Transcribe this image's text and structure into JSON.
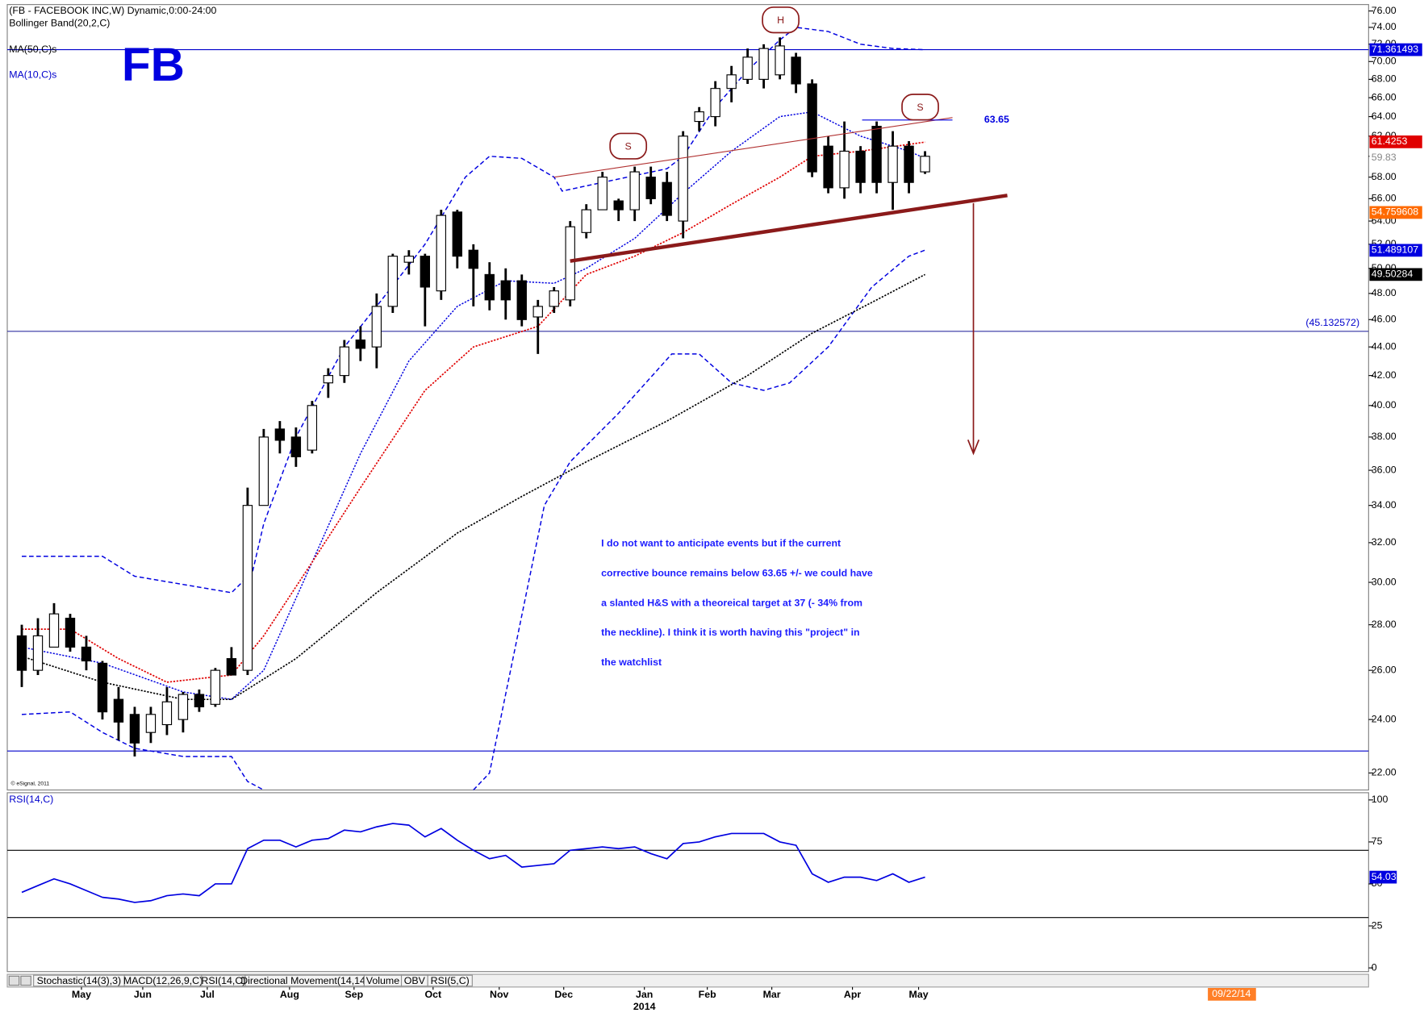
{
  "chart_data": [
    {
      "type": "candlestick",
      "title": "(FB - FACEBOOK INC,W) Dynamic,0:00-24:00",
      "symbol": "FB",
      "log_scale": true,
      "xlim": [
        -0.9,
        83.5
      ],
      "ylim": [
        21.4,
        76.8
      ],
      "yticks": [
        {
          "value": 76,
          "label": "76.00"
        },
        {
          "value": 74,
          "label": "74.00"
        },
        {
          "value": 72,
          "label": "72.00"
        },
        {
          "value": 70,
          "label": "70.00"
        },
        {
          "value": 68,
          "label": "68.00"
        },
        {
          "value": 66,
          "label": "66.00"
        },
        {
          "value": 64,
          "label": "64.00"
        },
        {
          "value": 62,
          "label": "62.00"
        },
        {
          "value": 60,
          "label": "60.00"
        },
        {
          "value": 58,
          "label": "58.00"
        },
        {
          "value": 56,
          "label": "56.00"
        },
        {
          "value": 54,
          "label": "54.00"
        },
        {
          "value": 52,
          "label": "52.00"
        },
        {
          "value": 50,
          "label": "50.00"
        },
        {
          "value": 48,
          "label": "48.00"
        },
        {
          "value": 46,
          "label": "46.00"
        },
        {
          "value": 44,
          "label": "44.00"
        },
        {
          "value": 42,
          "label": "42.00"
        },
        {
          "value": 40,
          "label": "40.00"
        },
        {
          "value": 38,
          "label": "38.00"
        },
        {
          "value": 36,
          "label": "36.00"
        },
        {
          "value": 34,
          "label": "34.00"
        },
        {
          "value": 32,
          "label": "32.00"
        },
        {
          "value": 30,
          "label": "30.00"
        },
        {
          "value": 28,
          "label": "28.00"
        },
        {
          "value": 26,
          "label": "26.00"
        },
        {
          "value": 24,
          "label": "24.00"
        },
        {
          "value": 22,
          "label": "22.00"
        }
      ],
      "xticks": [
        {
          "value": 3.7,
          "label": "May"
        },
        {
          "value": 7.5,
          "label": "Jun"
        },
        {
          "value": 11.5,
          "label": "Jul"
        },
        {
          "value": 16.6,
          "label": "Aug"
        },
        {
          "value": 20.6,
          "label": "Sep"
        },
        {
          "value": 25.5,
          "label": "Oct"
        },
        {
          "value": 29.6,
          "label": "Nov"
        },
        {
          "value": 33.6,
          "label": "Dec"
        },
        {
          "value": 38.6,
          "label": "Jan"
        },
        {
          "value": 42.5,
          "label": "Feb"
        },
        {
          "value": 46.5,
          "label": "Mar"
        },
        {
          "value": 51.5,
          "label": "Apr"
        },
        {
          "value": 55.6,
          "label": "May"
        }
      ],
      "year_label": "2014",
      "up_color": "#ffffff",
      "down_color": "#000000",
      "candles": [
        [
          27.5,
          28,
          25.3,
          26
        ],
        [
          26,
          28.3,
          25.8,
          27.5
        ],
        [
          27,
          29,
          27,
          28.5
        ],
        [
          28.3,
          28.5,
          26.8,
          27
        ],
        [
          27,
          27.5,
          26,
          26.4
        ],
        [
          26.3,
          26.4,
          24,
          24.3
        ],
        [
          24.8,
          25.3,
          23.2,
          23.9
        ],
        [
          24.2,
          24.5,
          22.6,
          23.1
        ],
        [
          23.5,
          24.5,
          23.1,
          24.2
        ],
        [
          23.8,
          25.3,
          23.4,
          24.7
        ],
        [
          24,
          25.1,
          23.5,
          25
        ],
        [
          25,
          25.2,
          24.3,
          24.5
        ],
        [
          24.6,
          26.1,
          24.5,
          26
        ],
        [
          26.5,
          27,
          25.8,
          25.8
        ],
        [
          26,
          35,
          25.8,
          34
        ],
        [
          34,
          38.5,
          34,
          38
        ],
        [
          38.5,
          39,
          37,
          37.8
        ],
        [
          38,
          38.6,
          36.2,
          36.8
        ],
        [
          37.2,
          40.3,
          37,
          40
        ],
        [
          41.5,
          42.5,
          40.5,
          42
        ],
        [
          42,
          44.5,
          41.5,
          44
        ],
        [
          44.5,
          45.5,
          43,
          43.9
        ],
        [
          44,
          48,
          42.5,
          47
        ],
        [
          47,
          51.2,
          46.5,
          51
        ],
        [
          50.5,
          51.5,
          49.5,
          51
        ],
        [
          51,
          51.2,
          45.5,
          48.5
        ],
        [
          48.2,
          55,
          47.5,
          54.5
        ],
        [
          54.8,
          55,
          50,
          51
        ],
        [
          51.5,
          52,
          47,
          50
        ],
        [
          49.5,
          50.5,
          46.7,
          47.5
        ],
        [
          49,
          50,
          46,
          47.5
        ],
        [
          49,
          49.5,
          45.5,
          46
        ],
        [
          46.2,
          47.5,
          43.5,
          47
        ],
        [
          47,
          48.5,
          46.5,
          48.2
        ],
        [
          47.5,
          54,
          47,
          53.5
        ],
        [
          53,
          55.5,
          52.5,
          55
        ],
        [
          55,
          58.5,
          55,
          58
        ],
        [
          55.8,
          56,
          54,
          55
        ],
        [
          55,
          59,
          54,
          58.5
        ],
        [
          58,
          59,
          55.5,
          56
        ],
        [
          57.5,
          58.5,
          54,
          54.5
        ],
        [
          54,
          62.5,
          52.5,
          62
        ],
        [
          63.5,
          65,
          62.5,
          64.5
        ],
        [
          64,
          67.8,
          63,
          67
        ],
        [
          67,
          69.5,
          65.5,
          68.5
        ],
        [
          68,
          71.5,
          67.5,
          70.5
        ],
        [
          68,
          72,
          67,
          71.5
        ],
        [
          68.5,
          72.8,
          68,
          71.8
        ],
        [
          70.5,
          71,
          66.5,
          67.5
        ],
        [
          67.5,
          68,
          58,
          58.5
        ],
        [
          61,
          62,
          56.5,
          57
        ],
        [
          57,
          63.5,
          56,
          60.5
        ],
        [
          60.5,
          61,
          56.5,
          57.5
        ],
        [
          63,
          63.5,
          56.5,
          57.5
        ],
        [
          57.5,
          62.5,
          55,
          61
        ],
        [
          61,
          61.5,
          56.5,
          57.5
        ],
        [
          58.5,
          60.5,
          58.3,
          60
        ]
      ],
      "series": [
        {
          "name": "MA(50,C)s",
          "color": "#000000",
          "legend_color": "#000000",
          "x": [
            0,
            5,
            10,
            13,
            17,
            22,
            27,
            31,
            35,
            40,
            45,
            49,
            53,
            56
          ],
          "values": [
            26.6,
            25.5,
            24.8,
            24.8,
            26.5,
            29.5,
            32.5,
            34.5,
            36.5,
            39,
            42,
            45,
            47.5,
            49.5
          ]
        },
        {
          "name": "MA(10,C)s",
          "color": "#e00000",
          "legend_color": "#0000cc",
          "x": [
            0,
            3,
            6,
            9,
            13,
            15,
            18,
            21,
            25,
            28,
            32,
            35,
            38,
            41,
            44,
            47,
            49,
            52,
            56
          ],
          "values": [
            27.8,
            27.8,
            26.5,
            25.5,
            25.8,
            27.5,
            31,
            35,
            41,
            44,
            45.5,
            49.5,
            51,
            53,
            55.5,
            58,
            60,
            60.5,
            61.4
          ]
        }
      ],
      "bands": {
        "name": "Bollinger Band(20,2,C)",
        "color": "#0000e0",
        "lines": [
          {
            "style": "dashed",
            "x": [
              0,
              5,
              7,
              13,
              14.3,
              15,
              17,
              20,
              22,
              25,
              27.5,
              29,
              31,
              33,
              33.5,
              36,
              40,
              41,
              43,
              45,
              47,
              48,
              50,
              52,
              54,
              56
            ],
            "values": [
              31.3,
              31.3,
              30.3,
              29.5,
              30.5,
              33,
              38,
              44,
              47,
              52,
              58,
              60,
              59.8,
              58,
              56.7,
              57.5,
              58.8,
              60,
              65,
              69,
              72.5,
              74,
              73.5,
              72,
              71.5,
              71.36
            ]
          },
          {
            "style": "dotted",
            "x": [
              0,
              5,
              10,
              13,
              15,
              18,
              21,
              24,
              27,
              30,
              33,
              35,
              38,
              41,
              44,
              47,
              49,
              52,
              55,
              56
            ],
            "values": [
              27,
              26.3,
              25.1,
              24.8,
              26,
              31,
              37,
              43,
              47,
              49,
              48.8,
              50,
              52.5,
              56.5,
              60.5,
              64,
              64.5,
              62,
              60.5,
              59.8
            ]
          },
          {
            "style": "dashed",
            "x": [
              0,
              3,
              5,
              7,
              10,
              13,
              14,
              15,
              20,
              28,
              29,
              32.4,
              34,
              37,
              40.3,
              42,
              44,
              46,
              47.6,
              50,
              52.7,
              55,
              56
            ],
            "values": [
              24.2,
              24.3,
              23.5,
              22.9,
              22.6,
              22.6,
              21.7,
              21.4,
              null,
              21.4,
              22,
              34,
              36.5,
              39.5,
              43.5,
              43.5,
              41.5,
              41,
              41.5,
              44,
              48.5,
              51,
              51.5
            ]
          }
        ]
      },
      "price_labels": [
        {
          "value": 71.361493,
          "color": "#0000e0",
          "text_color": "#ffffff",
          "line": true
        },
        {
          "value": 61.4253,
          "color": "#e00000",
          "text_color": "#ffffff"
        },
        {
          "value": 59.83,
          "color": "#ffffff",
          "text_color": "#888888"
        },
        {
          "value": 54.759608,
          "color": "#ff6a00",
          "text_color": "#ffffff"
        },
        {
          "value": 51.489107,
          "color": "#0000e0",
          "text_color": "#ffffff"
        },
        {
          "value": 49.50284,
          "color": "#000000",
          "text_color": "#ffffff"
        },
        {
          "value": 45.132572,
          "label": "(45.132572)",
          "color": "none",
          "text_color": "#0000cc",
          "line": true
        }
      ],
      "hlines": [
        22.8
      ],
      "trendlines": [
        {
          "color": "#8b1a1a",
          "width": 4,
          "x": [
            34,
            61.1
          ],
          "values": [
            50.6,
            56.3
          ]
        },
        {
          "color": "#b03030",
          "width": 1,
          "x": [
            33,
            57.7
          ],
          "values": [
            58.0,
            63.9
          ]
        }
      ],
      "level": {
        "value": 63.65,
        "x": [
          52.1,
          57.7
        ],
        "color": "#0000e0"
      },
      "target_arrow": {
        "x": 59,
        "from": 55.6,
        "to": 37,
        "color": "#8b1a1a"
      },
      "pattern_labels": [
        {
          "label": "S",
          "x": 37.6,
          "y": 61
        },
        {
          "label": "H",
          "x": 47.05,
          "y": 74.9
        },
        {
          "label": "S",
          "x": 55.7,
          "y": 65
        }
      ],
      "annotation_lines": [
        "I do not want to anticipate events but if the current",
        "corrective bounce remains below 63.65 +/- we could have",
        "a slanted H&S with a theoreical target at 37 (- 34% from",
        "the neckline). I think it is worth having this \"project\" in",
        "the watchlist"
      ],
      "copyright": "© eSignal, 2011"
    },
    {
      "type": "line",
      "title": "RSI(14,C)",
      "color": "#0000e0",
      "ylim": [
        -2.2,
        104.3
      ],
      "yticks": [
        0,
        25,
        50,
        75,
        100
      ],
      "hlines": [
        70,
        30
      ],
      "values": [
        45,
        49,
        53,
        50,
        46,
        42,
        41,
        39,
        40,
        43,
        44,
        43,
        50,
        50,
        71,
        76,
        76,
        72,
        76,
        77,
        82,
        81,
        84,
        86,
        85,
        78,
        83,
        76,
        70,
        65,
        67,
        60,
        61,
        62,
        70,
        71,
        72,
        71,
        72,
        68,
        65,
        74,
        75,
        78,
        80,
        80,
        80,
        75,
        73,
        56,
        51,
        54,
        54,
        52,
        56,
        51,
        54.03
      ]
    }
  ],
  "window": {
    "tabs": [
      "Stochastic(14(3),3)",
      "MACD(12,26,9,C)",
      "RSI(14,C)",
      "Directional Movement(14,14)",
      "Volume",
      "OBV",
      "RSI(5,C)"
    ],
    "date_box": "09/22/14"
  }
}
